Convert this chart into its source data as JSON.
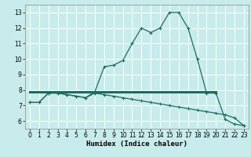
{
  "title": "",
  "xlabel": "Humidex (Indice chaleur)",
  "background_color": "#c8ecec",
  "grid_color": "#ffffff",
  "line_color": "#1e6b5e",
  "xlim": [
    -0.5,
    23.5
  ],
  "ylim": [
    5.5,
    13.5
  ],
  "yticks": [
    6,
    7,
    8,
    9,
    10,
    11,
    12,
    13
  ],
  "xticks": [
    0,
    1,
    2,
    3,
    4,
    5,
    6,
    7,
    8,
    9,
    10,
    11,
    12,
    13,
    14,
    15,
    16,
    17,
    18,
    19,
    20,
    21,
    22,
    23
  ],
  "curve1_x": [
    0,
    1,
    2,
    3,
    4,
    5,
    6,
    7,
    8,
    9,
    10,
    11,
    12,
    13,
    14,
    15,
    16,
    17,
    18,
    19,
    20,
    21,
    22,
    23
  ],
  "curve1_y": [
    7.2,
    7.2,
    7.8,
    7.8,
    7.7,
    7.6,
    7.5,
    7.9,
    9.5,
    9.6,
    9.9,
    11.0,
    12.0,
    11.7,
    12.0,
    13.0,
    13.0,
    12.0,
    10.0,
    7.8,
    7.8,
    6.1,
    5.8,
    5.7
  ],
  "curve2_x": [
    0,
    1,
    2,
    3,
    4,
    5,
    6,
    7,
    8,
    9,
    10,
    11,
    12,
    13,
    14,
    15,
    16,
    17,
    18,
    19,
    20,
    21,
    22,
    23
  ],
  "curve2_y": [
    7.2,
    7.2,
    7.8,
    7.8,
    7.7,
    7.6,
    7.5,
    7.8,
    7.7,
    7.6,
    7.5,
    7.4,
    7.3,
    7.2,
    7.1,
    7.0,
    6.9,
    6.8,
    6.7,
    6.6,
    6.5,
    6.4,
    6.2,
    5.7
  ],
  "flat_line_x": [
    0,
    20
  ],
  "flat_line_y": [
    7.9,
    7.9
  ],
  "tick_fontsize": 5.5,
  "xlabel_fontsize": 6.5
}
